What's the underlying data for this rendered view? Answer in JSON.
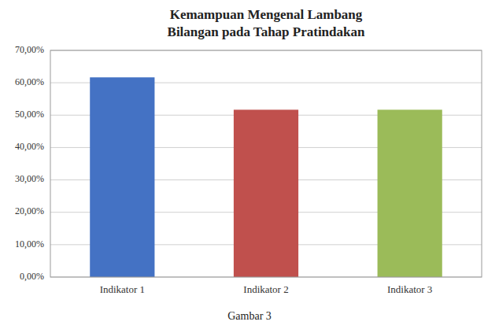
{
  "chart_data": {
    "type": "bar",
    "title": "Kemampuan Mengenal Lambang\nBilangan pada Tahap Pratindakan",
    "caption": "Gambar 3",
    "categories": [
      "Indikator 1",
      "Indikator 2",
      "Indikator 3"
    ],
    "values": [
      0.6167,
      0.5167,
      0.5167
    ],
    "colors": [
      "#4472C4",
      "#C0504D",
      "#9BBB59"
    ],
    "ylim": [
      0,
      0.7
    ],
    "yticks": [
      {
        "value": 0.0,
        "label": "0,00%"
      },
      {
        "value": 0.1,
        "label": "10,00%"
      },
      {
        "value": 0.2,
        "label": "20,00%"
      },
      {
        "value": 0.3,
        "label": "30,00%"
      },
      {
        "value": 0.4,
        "label": "40,00%"
      },
      {
        "value": 0.5,
        "label": "50,00%"
      },
      {
        "value": 0.6,
        "label": "60,00%"
      },
      {
        "value": 0.7,
        "label": "70,00%"
      }
    ],
    "grid": true
  }
}
